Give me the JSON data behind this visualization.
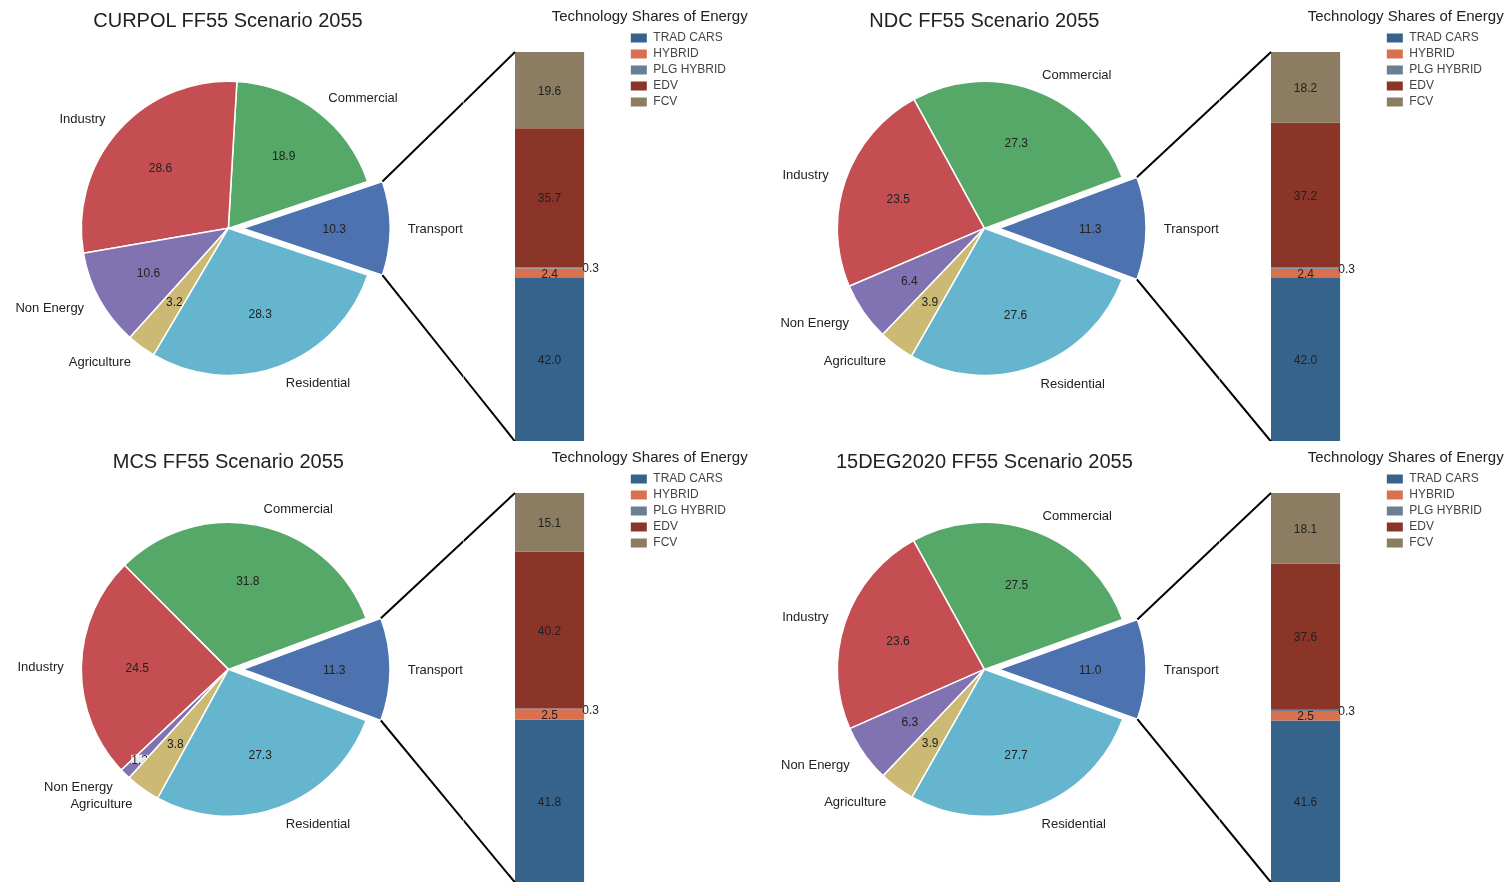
{
  "chart_data": [
    {
      "type": "pie",
      "title": "CURPOL FF55 Scenario 2055",
      "categories": [
        "Transport",
        "Commercial",
        "Industry",
        "Non Energy",
        "Agriculture",
        "Residential"
      ],
      "values": [
        10.3,
        18.9,
        28.6,
        10.6,
        3.2,
        28.3
      ],
      "value_labels": [
        "10.3",
        "18.9",
        "28.6",
        "10.6",
        "3.2",
        "28.3"
      ],
      "colors": [
        "#4c72b0",
        "#55a868",
        "#c44e52",
        "#8172b2",
        "#ccb974",
        "#64b5cd"
      ]
    },
    {
      "type": "bar",
      "title": "Technology Shares of Energy",
      "categories": [
        null
      ],
      "stacked": true,
      "legend": "top right",
      "series": [
        {
          "name": "TRAD CARS",
          "color": "#35638c",
          "values": [
            42.0
          ],
          "value_labels": [
            "42.0"
          ]
        },
        {
          "name": "HYBRID",
          "color": "#d9714f",
          "values": [
            2.4
          ],
          "value_labels": [
            "2.4"
          ]
        },
        {
          "name": "PLG HYBRID",
          "color": "#6a7f94",
          "values": [
            0.3
          ],
          "value_labels": [
            "0.3"
          ]
        },
        {
          "name": "EDV",
          "color": "#8b3428",
          "values": [
            35.7
          ],
          "value_labels": [
            "35.7"
          ]
        },
        {
          "name": "FCV",
          "color": "#8c7d62",
          "values": [
            19.6
          ],
          "value_labels": [
            "19.6"
          ]
        }
      ]
    },
    {
      "type": "pie",
      "title": "NDC FF55 Scenario 2055",
      "categories": [
        "Transport",
        "Commercial",
        "Industry",
        "Non Energy",
        "Agriculture",
        "Residential"
      ],
      "values": [
        11.3,
        27.3,
        23.5,
        6.4,
        3.9,
        27.6
      ],
      "value_labels": [
        "11.3",
        "27.3",
        "23.5",
        "6.4",
        "3.9",
        "27.6"
      ],
      "colors": [
        "#4c72b0",
        "#55a868",
        "#c44e52",
        "#8172b2",
        "#ccb974",
        "#64b5cd"
      ]
    },
    {
      "type": "bar",
      "title": "Technology Shares of Energy",
      "categories": [
        null
      ],
      "stacked": true,
      "legend": "top right",
      "series": [
        {
          "name": "TRAD CARS",
          "color": "#35638c",
          "values": [
            42.0
          ],
          "value_labels": [
            "42.0"
          ]
        },
        {
          "name": "HYBRID",
          "color": "#d9714f",
          "values": [
            2.4
          ],
          "value_labels": [
            "2.4"
          ]
        },
        {
          "name": "PLG HYBRID",
          "color": "#6a7f94",
          "values": [
            0.3
          ],
          "value_labels": [
            "0.3"
          ]
        },
        {
          "name": "EDV",
          "color": "#8b3428",
          "values": [
            37.2
          ],
          "value_labels": [
            "37.2"
          ]
        },
        {
          "name": "FCV",
          "color": "#8c7d62",
          "values": [
            18.2
          ],
          "value_labels": [
            "18.2"
          ]
        }
      ]
    },
    {
      "type": "pie",
      "title": "MCS FF55 Scenario 2055",
      "categories": [
        "Transport",
        "Commercial",
        "Industry",
        "Non Energy",
        "Agriculture",
        "Residential"
      ],
      "values": [
        11.3,
        31.8,
        24.5,
        1.2,
        3.8,
        27.3
      ],
      "value_labels": [
        "11.3",
        "31.8",
        "24.5",
        "1.2",
        "3.8",
        "27.3"
      ],
      "colors": [
        "#4c72b0",
        "#55a868",
        "#c44e52",
        "#8172b2",
        "#ccb974",
        "#64b5cd"
      ]
    },
    {
      "type": "bar",
      "title": "Technology Shares of Energy",
      "categories": [
        null
      ],
      "stacked": true,
      "legend": "top right",
      "series": [
        {
          "name": "TRAD CARS",
          "color": "#35638c",
          "values": [
            41.8
          ],
          "value_labels": [
            "41.8"
          ]
        },
        {
          "name": "HYBRID",
          "color": "#d9714f",
          "values": [
            2.5
          ],
          "value_labels": [
            "2.5"
          ]
        },
        {
          "name": "PLG HYBRID",
          "color": "#6a7f94",
          "values": [
            0.3
          ],
          "value_labels": [
            "0.3"
          ]
        },
        {
          "name": "EDV",
          "color": "#8b3428",
          "values": [
            40.2
          ],
          "value_labels": [
            "40.2"
          ]
        },
        {
          "name": "FCV",
          "color": "#8c7d62",
          "values": [
            15.1
          ],
          "value_labels": [
            "15.1"
          ]
        }
      ]
    },
    {
      "type": "pie",
      "title": "15DEG2020 FF55 Scenario 2055",
      "categories": [
        "Transport",
        "Commercial",
        "Industry",
        "Non Energy",
        "Agriculture",
        "Residential"
      ],
      "values": [
        11.0,
        27.5,
        23.6,
        6.3,
        3.9,
        27.7
      ],
      "value_labels": [
        "11.0",
        "27.5",
        "23.6",
        "6.3",
        "3.9",
        "27.7"
      ],
      "colors": [
        "#4c72b0",
        "#55a868",
        "#c44e52",
        "#8172b2",
        "#ccb974",
        "#64b5cd"
      ]
    },
    {
      "type": "bar",
      "title": "Technology Shares of Energy",
      "categories": [
        null
      ],
      "stacked": true,
      "legend": "top right",
      "series": [
        {
          "name": "TRAD CARS",
          "color": "#35638c",
          "values": [
            41.6
          ],
          "value_labels": [
            "41.6"
          ]
        },
        {
          "name": "HYBRID",
          "color": "#d9714f",
          "values": [
            2.5
          ],
          "value_labels": [
            "2.5"
          ]
        },
        {
          "name": "PLG HYBRID",
          "color": "#6a7f94",
          "values": [
            0.3
          ],
          "value_labels": [
            "0.3"
          ]
        },
        {
          "name": "EDV",
          "color": "#8b3428",
          "values": [
            37.6
          ],
          "value_labels": [
            "37.6"
          ]
        },
        {
          "name": "FCV",
          "color": "#8c7d62",
          "values": [
            18.1
          ],
          "value_labels": [
            "18.1"
          ]
        }
      ]
    }
  ]
}
